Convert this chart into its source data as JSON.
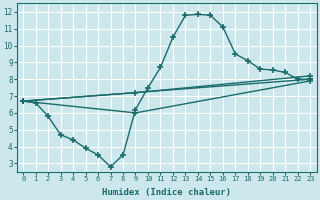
{
  "background_color": "#cce8ec",
  "grid_color": "#ffffff",
  "line_color": "#1a6b6b",
  "marker": "+",
  "markersize": 4,
  "markeredgewidth": 1.2,
  "linewidth": 1.0,
  "xlabel": "Humidex (Indice chaleur)",
  "xlim": [
    -0.5,
    23.5
  ],
  "ylim": [
    2.5,
    12.5
  ],
  "xticks": [
    0,
    1,
    2,
    3,
    4,
    5,
    6,
    7,
    8,
    9,
    10,
    11,
    12,
    13,
    14,
    15,
    16,
    17,
    18,
    19,
    20,
    21,
    22,
    23
  ],
  "yticks": [
    3,
    4,
    5,
    6,
    7,
    8,
    9,
    10,
    11,
    12
  ],
  "lines": [
    {
      "x": [
        0,
        1,
        2,
        3,
        4,
        5,
        6,
        7,
        8,
        9,
        10,
        11,
        12,
        13,
        14,
        15,
        16,
        17,
        18,
        19,
        20,
        21,
        22,
        23
      ],
      "y": [
        6.7,
        6.6,
        5.8,
        4.7,
        4.4,
        3.9,
        3.5,
        2.8,
        3.5,
        6.2,
        7.5,
        8.7,
        10.5,
        11.8,
        11.85,
        11.8,
        11.1,
        9.5,
        9.1,
        8.6,
        8.55,
        8.4,
        8.0,
        8.0
      ]
    },
    {
      "x": [
        0,
        23
      ],
      "y": [
        6.7,
        8.0
      ]
    },
    {
      "x": [
        0,
        9,
        23
      ],
      "y": [
        6.7,
        7.2,
        8.2
      ]
    },
    {
      "x": [
        0,
        9,
        23
      ],
      "y": [
        6.7,
        6.0,
        7.9
      ]
    }
  ]
}
